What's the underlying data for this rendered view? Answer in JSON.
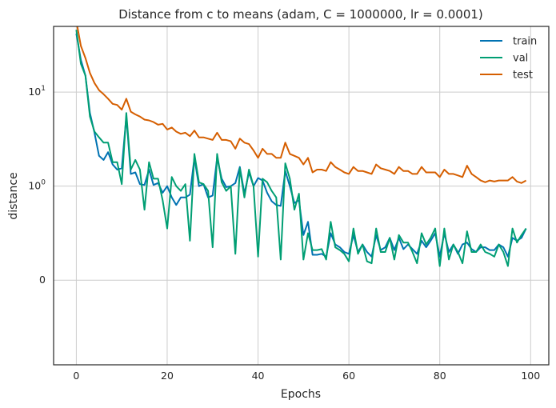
{
  "chart_data": {
    "type": "line",
    "title": "Distance from c to means (adam, C = 1000000, lr = 0.0001)",
    "xlabel": "Epochs",
    "ylabel": "distance",
    "yscale": "symlog",
    "xlim": [
      -5,
      104
    ],
    "ylim": [
      -0.9,
      50
    ],
    "grid": true,
    "legend_position": "top-right",
    "x_ticks": [
      {
        "value": 0,
        "label": "0"
      },
      {
        "value": 20,
        "label": "20"
      },
      {
        "value": 40,
        "label": "40"
      },
      {
        "value": 60,
        "label": "60"
      },
      {
        "value": 80,
        "label": "80"
      },
      {
        "value": 100,
        "label": "100"
      }
    ],
    "y_ticks": [
      {
        "value": 0,
        "label": "0"
      },
      {
        "value": 1,
        "label": "10",
        "sup": "0"
      },
      {
        "value": 10,
        "label": "10",
        "sup": "1"
      }
    ],
    "x": [
      0,
      1,
      2,
      3,
      4,
      5,
      6,
      7,
      8,
      9,
      10,
      11,
      12,
      13,
      14,
      15,
      16,
      17,
      18,
      19,
      20,
      21,
      22,
      23,
      24,
      25,
      26,
      27,
      28,
      29,
      30,
      31,
      32,
      33,
      34,
      35,
      36,
      37,
      38,
      39,
      40,
      41,
      42,
      43,
      44,
      45,
      46,
      47,
      48,
      49,
      50,
      51,
      52,
      53,
      54,
      55,
      56,
      57,
      58,
      59,
      60,
      61,
      62,
      63,
      64,
      65,
      66,
      67,
      68,
      69,
      70,
      71,
      72,
      73,
      74,
      75,
      76,
      77,
      78,
      79,
      80,
      81,
      82,
      83,
      84,
      85,
      86,
      87,
      88,
      89,
      90,
      91,
      92,
      93,
      94,
      95,
      96,
      97,
      98,
      99
    ],
    "series": [
      {
        "name": "train",
        "color": "#0072b2",
        "values": [
          42,
          22,
          15,
          6.0,
          3.7,
          2.1,
          1.9,
          2.3,
          1.7,
          1.5,
          1.55,
          5.5,
          1.35,
          1.4,
          1.05,
          1.03,
          1.5,
          1.03,
          1.08,
          0.93,
          1.0,
          0.88,
          0.8,
          0.88,
          0.88,
          0.91,
          2.0,
          1.0,
          1.05,
          0.88,
          0.9,
          2.0,
          1.2,
          0.99,
          1.0,
          1.08,
          1.6,
          0.92,
          1.4,
          1.0,
          1.22,
          1.15,
          0.93,
          0.84,
          0.8,
          0.79,
          1.45,
          1.0,
          0.82,
          0.85,
          0.48,
          0.62,
          0.27,
          0.27,
          0.28,
          0.25,
          0.5,
          0.38,
          0.35,
          0.3,
          0.28,
          0.48,
          0.3,
          0.38,
          0.3,
          0.25,
          0.48,
          0.32,
          0.35,
          0.45,
          0.32,
          0.45,
          0.33,
          0.38,
          0.33,
          0.28,
          0.42,
          0.35,
          0.42,
          0.5,
          0.25,
          0.5,
          0.3,
          0.38,
          0.28,
          0.38,
          0.4,
          0.33,
          0.3,
          0.35,
          0.35,
          0.32,
          0.32,
          0.38,
          0.35,
          0.25,
          0.45,
          0.42,
          0.45,
          0.55
        ]
      },
      {
        "name": "val",
        "color": "#009e73",
        "values": [
          46,
          20,
          15,
          5.5,
          3.8,
          3.3,
          2.9,
          2.9,
          1.8,
          1.8,
          1.05,
          6.0,
          1.5,
          1.9,
          1.5,
          0.75,
          1.8,
          1.2,
          1.2,
          0.85,
          0.55,
          1.25,
          1.0,
          0.95,
          1.05,
          0.42,
          2.2,
          1.1,
          1.05,
          0.95,
          0.35,
          2.2,
          1.1,
          0.95,
          1.0,
          0.28,
          1.55,
          0.88,
          1.5,
          1.0,
          0.25,
          1.2,
          1.1,
          0.95,
          0.88,
          0.22,
          1.75,
          1.2,
          0.75,
          0.92,
          0.22,
          0.5,
          0.32,
          0.32,
          0.33,
          0.22,
          0.62,
          0.35,
          0.32,
          0.28,
          0.2,
          0.55,
          0.28,
          0.38,
          0.2,
          0.18,
          0.55,
          0.3,
          0.3,
          0.45,
          0.22,
          0.48,
          0.4,
          0.4,
          0.3,
          0.18,
          0.5,
          0.38,
          0.45,
          0.55,
          0.15,
          0.55,
          0.22,
          0.38,
          0.3,
          0.18,
          0.52,
          0.3,
          0.3,
          0.38,
          0.3,
          0.28,
          0.25,
          0.38,
          0.3,
          0.15,
          0.55,
          0.4,
          0.48,
          0.55
        ]
      },
      {
        "name": "test",
        "color": "#d55e00",
        "values": [
          57,
          31,
          23,
          16,
          12.5,
          10.5,
          9.5,
          8.5,
          7.5,
          7.3,
          6.5,
          8.5,
          6.2,
          5.8,
          5.5,
          5.1,
          5.0,
          4.8,
          4.5,
          4.6,
          4.0,
          4.2,
          3.8,
          3.6,
          3.7,
          3.4,
          3.9,
          3.3,
          3.3,
          3.2,
          3.1,
          3.7,
          3.1,
          3.1,
          3.0,
          2.5,
          3.2,
          2.9,
          2.8,
          2.4,
          2.0,
          2.5,
          2.2,
          2.2,
          2.0,
          2.0,
          2.9,
          2.2,
          2.1,
          2.0,
          1.7,
          2.0,
          1.4,
          1.5,
          1.5,
          1.45,
          1.8,
          1.6,
          1.5,
          1.4,
          1.35,
          1.6,
          1.45,
          1.45,
          1.4,
          1.35,
          1.7,
          1.55,
          1.5,
          1.45,
          1.35,
          1.6,
          1.45,
          1.45,
          1.35,
          1.35,
          1.6,
          1.4,
          1.4,
          1.4,
          1.25,
          1.5,
          1.35,
          1.35,
          1.3,
          1.25,
          1.65,
          1.35,
          1.25,
          1.15,
          1.1,
          1.15,
          1.12,
          1.15,
          1.15,
          1.15,
          1.25,
          1.12,
          1.08,
          1.15
        ]
      }
    ]
  }
}
